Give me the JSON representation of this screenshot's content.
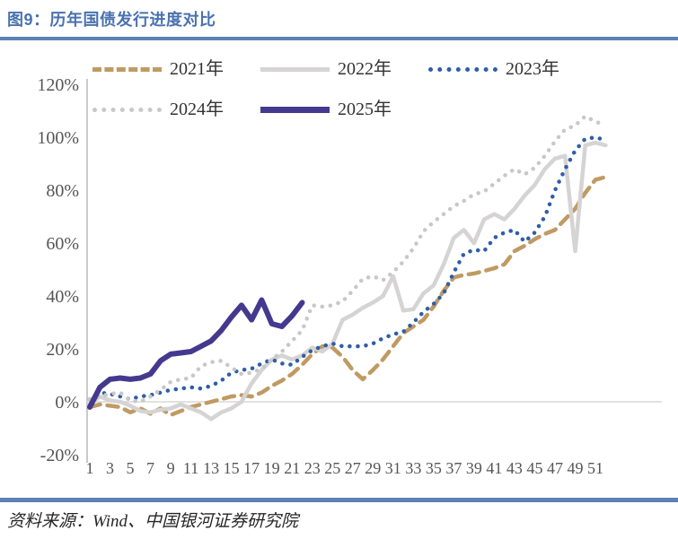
{
  "header": {
    "title": "图9：历年国债发行进度对比"
  },
  "footer": {
    "source": "资料来源：Wind、中国银河证券研究院"
  },
  "chart_data": {
    "type": "line",
    "title": "历年国债发行进度对比",
    "xlabel": "",
    "ylabel": "",
    "x_unit": "week",
    "x_ticks": [
      1,
      3,
      5,
      7,
      9,
      11,
      13,
      15,
      17,
      19,
      21,
      23,
      25,
      27,
      29,
      31,
      33,
      35,
      37,
      39,
      41,
      43,
      45,
      47,
      49,
      51
    ],
    "y_tick_labels": [
      "120%",
      "100%",
      "80%",
      "60%",
      "40%",
      "20%",
      "0%",
      "-20%"
    ],
    "y_tick_values": [
      120,
      100,
      80,
      60,
      40,
      20,
      0,
      -20
    ],
    "ylim": [
      -20,
      120
    ],
    "xlim": [
      1,
      52
    ],
    "grid": "zero-line-only",
    "legend_position": "top",
    "series": [
      {
        "name": "2021年",
        "color": "#C09A63",
        "style": "dashed",
        "x_start": 1,
        "values": [
          -2,
          -1,
          -1.5,
          -2,
          -4,
          -2.5,
          -4.5,
          -2.5,
          -5,
          -3.5,
          -2,
          -1,
          0,
          1,
          2,
          2.5,
          2,
          3.5,
          6,
          8,
          10.5,
          14,
          18,
          21,
          20.5,
          17,
          12,
          8.5,
          12,
          16,
          21,
          26,
          28.5,
          31,
          36,
          42,
          47,
          48,
          48.5,
          49.5,
          50.5,
          52,
          57,
          59,
          61.5,
          63.5,
          65,
          69,
          73,
          79,
          84,
          85
        ]
      },
      {
        "name": "2022年",
        "color": "#D5D3D3",
        "style": "solid",
        "x_start": 1,
        "values": [
          -1,
          2,
          0.5,
          0,
          -1.5,
          -3.5,
          -4,
          -3,
          -2.5,
          -1,
          -2.5,
          -4,
          -6.5,
          -4,
          -2.5,
          0,
          7,
          12,
          16,
          17.5,
          16,
          17.5,
          20.5,
          19,
          22,
          31,
          33,
          35.5,
          37.5,
          40,
          47.5,
          34.5,
          35,
          41,
          44,
          52,
          62,
          65,
          60,
          69,
          71,
          69,
          73,
          78,
          82,
          88,
          92,
          93,
          57,
          97,
          98,
          97
        ]
      },
      {
        "name": "2023年",
        "color": "#2F5EA8",
        "style": "dotted",
        "x_start": 1,
        "values": [
          1,
          3.5,
          3,
          2,
          1,
          2,
          2.5,
          3.5,
          4.5,
          5,
          5.5,
          5,
          6,
          8,
          11,
          12,
          12.5,
          14.5,
          16,
          14.5,
          14,
          17,
          19.5,
          21,
          22,
          21,
          21,
          21,
          22,
          24,
          25.5,
          26.5,
          30,
          34,
          37,
          41,
          49,
          56,
          57.5,
          57,
          62,
          64,
          65,
          60.5,
          64,
          70,
          80,
          88,
          95,
          99.5,
          100,
          99
        ]
      },
      {
        "name": "2024年",
        "color": "#C8C8C8",
        "style": "dotted",
        "x_start": 1,
        "values": [
          1,
          2,
          3,
          3.5,
          0.5,
          0,
          2,
          4.5,
          7.5,
          8.5,
          9,
          13.5,
          15,
          15.5,
          13,
          10.5,
          11,
          12.5,
          16,
          19,
          23,
          27,
          36.5,
          36,
          36.5,
          38,
          42,
          46.5,
          47.5,
          46,
          49,
          53,
          58,
          64.5,
          68,
          71,
          74,
          76,
          78.5,
          79.5,
          82.5,
          85.5,
          88,
          86,
          88.5,
          93,
          98.5,
          103,
          104.5,
          108,
          106,
          104.5
        ]
      },
      {
        "name": "2025年",
        "color": "#44398E",
        "style": "bold",
        "x_start": 1,
        "values": [
          -2,
          5.5,
          8.5,
          9,
          8.5,
          9,
          10.5,
          15.5,
          18,
          18.5,
          19,
          21,
          23,
          27,
          32,
          36.5,
          31,
          38.5,
          29.5,
          28.5,
          32.5,
          37.5
        ]
      }
    ]
  }
}
